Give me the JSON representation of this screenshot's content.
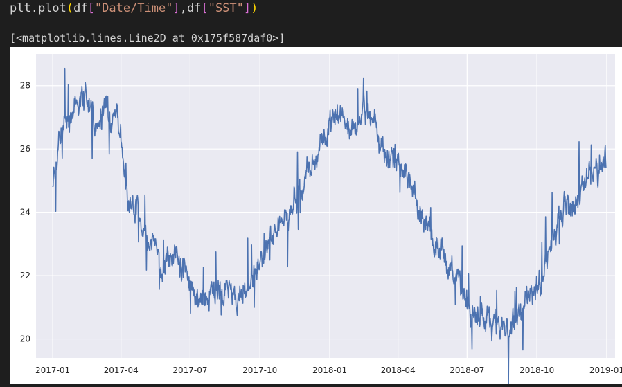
{
  "notebook": {
    "input_code": {
      "fn": "plt.plot",
      "open_paren": "(",
      "arg1_obj": "df",
      "arg1_open": "[",
      "arg1_key": "\"Date/Time\"",
      "arg1_close": "]",
      "sep": ",",
      "arg2_obj": "df",
      "arg2_open": "[",
      "arg2_key": "\"SST\"",
      "arg2_close": "]",
      "close_paren": ")"
    },
    "output_text": "[<matplotlib.lines.Line2D at 0x175f587daf0>]"
  },
  "colors": {
    "line": "#4c72b0",
    "plot_bg": "#eaeaf2",
    "grid": "#ffffff"
  },
  "chart_data": {
    "type": "line",
    "title": "",
    "xlabel": "",
    "ylabel": "",
    "grid": true,
    "xlim": [
      "2016-12-10",
      "2019-01-12"
    ],
    "ylim": [
      19.4,
      29.0
    ],
    "yticks": [
      20,
      22,
      24,
      26,
      28
    ],
    "xticks": [
      "2017-01",
      "2017-04",
      "2017-07",
      "2017-10",
      "2018-01",
      "2018-04",
      "2018-07",
      "2018-10",
      "2019-01"
    ],
    "series": [
      {
        "x": [
          "2017-01-01",
          "2017-01-10",
          "2017-01-20",
          "2017-02-01",
          "2017-02-10",
          "2017-02-20",
          "2017-03-01",
          "2017-03-10",
          "2017-03-20",
          "2017-03-31",
          "2017-04-10",
          "2017-04-20",
          "2017-05-01",
          "2017-05-10",
          "2017-05-20",
          "2017-06-01",
          "2017-06-10",
          "2017-06-20",
          "2017-07-01",
          "2017-07-10",
          "2017-07-20",
          "2017-08-01",
          "2017-08-10",
          "2017-08-20",
          "2017-09-01",
          "2017-09-10",
          "2017-09-20",
          "2017-10-01",
          "2017-10-10",
          "2017-10-20",
          "2017-11-01",
          "2017-11-10",
          "2017-11-20",
          "2017-12-01",
          "2017-12-10",
          "2017-12-20",
          "2018-01-01",
          "2018-01-10",
          "2018-01-20",
          "2018-02-01",
          "2018-02-10",
          "2018-02-20",
          "2018-03-01",
          "2018-03-10",
          "2018-03-20",
          "2018-04-01",
          "2018-04-10",
          "2018-04-20",
          "2018-05-01",
          "2018-05-10",
          "2018-05-20",
          "2018-06-01",
          "2018-06-10",
          "2018-06-20",
          "2018-07-01",
          "2018-07-10",
          "2018-07-20",
          "2018-08-01",
          "2018-08-10",
          "2018-08-20",
          "2018-09-01",
          "2018-09-10",
          "2018-09-20",
          "2018-10-01",
          "2018-10-10",
          "2018-10-20",
          "2018-11-01",
          "2018-11-10",
          "2018-11-20",
          "2018-12-01",
          "2018-12-10",
          "2018-12-20",
          "2018-12-31"
        ],
        "values": [
          25.0,
          26.2,
          26.8,
          27.3,
          27.6,
          27.2,
          26.9,
          27.1,
          27.0,
          26.4,
          24.3,
          24.0,
          23.6,
          23.1,
          22.7,
          22.3,
          22.5,
          22.2,
          21.5,
          21.2,
          21.4,
          21.6,
          21.5,
          21.3,
          21.2,
          21.5,
          21.9,
          22.4,
          22.9,
          23.3,
          23.6,
          24.0,
          24.6,
          25.1,
          25.6,
          26.1,
          26.8,
          27.1,
          26.7,
          26.6,
          26.9,
          27.1,
          26.7,
          26.1,
          25.9,
          25.6,
          25.3,
          24.6,
          24.0,
          23.5,
          23.0,
          22.6,
          22.2,
          21.9,
          21.1,
          20.7,
          20.8,
          20.6,
          20.4,
          20.3,
          20.6,
          21.0,
          21.3,
          21.6,
          22.2,
          23.0,
          23.8,
          24.2,
          24.4,
          24.7,
          25.1,
          25.3,
          25.6
        ]
      }
    ]
  }
}
